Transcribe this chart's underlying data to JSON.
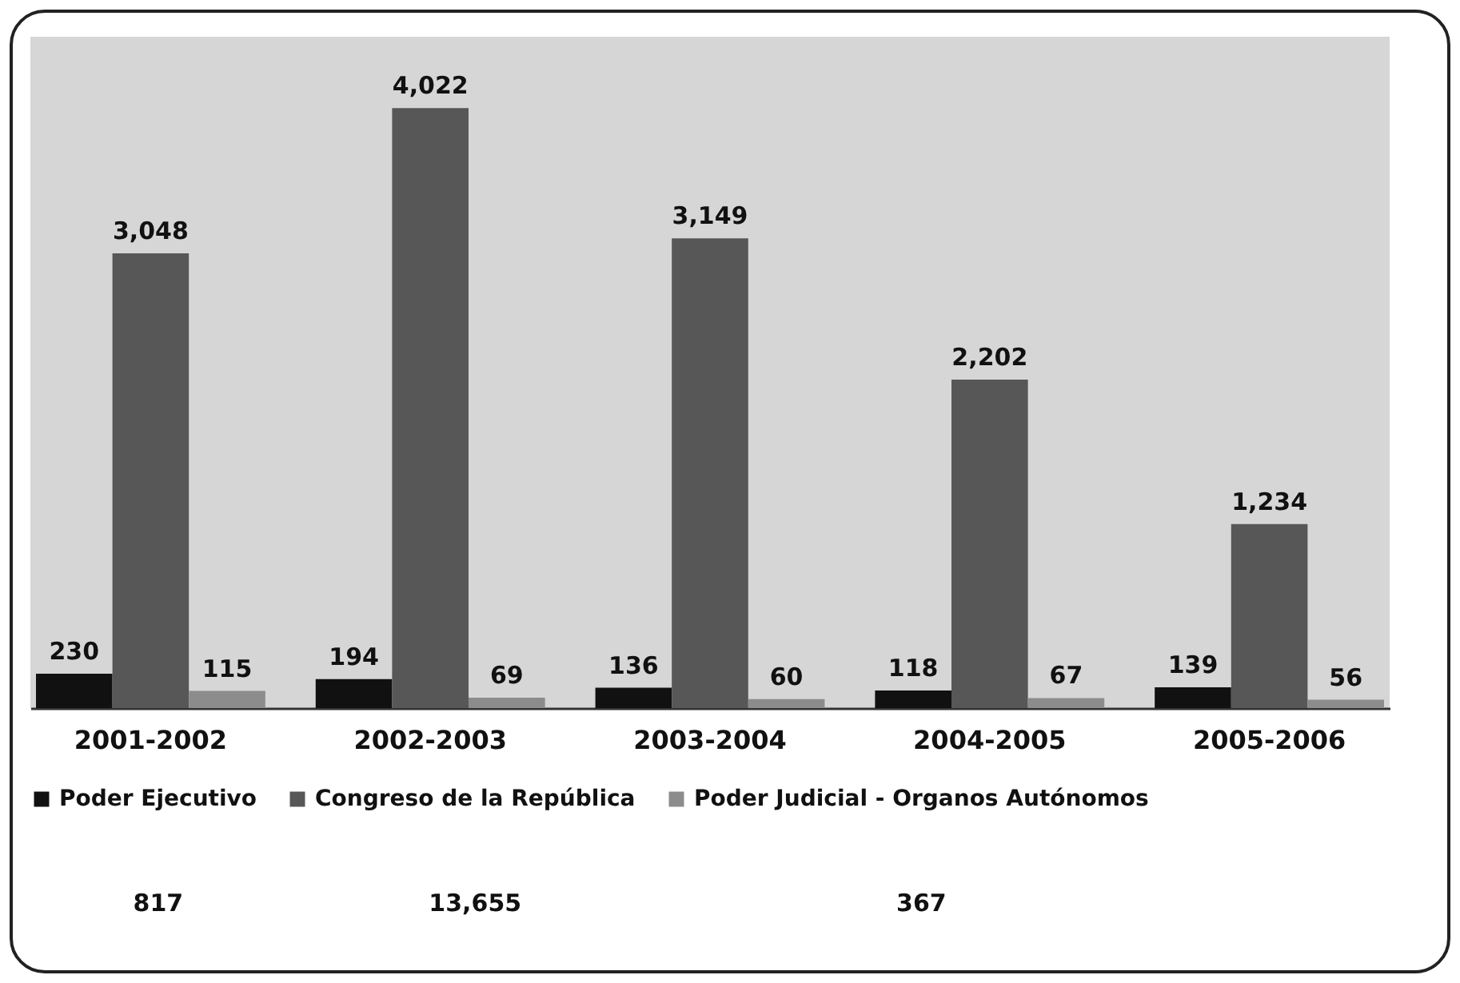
{
  "chart_data": {
    "type": "bar",
    "categories": [
      "2001-2002",
      "2002-2003",
      "2003-2004",
      "2004-2005",
      "2005-2006"
    ],
    "series": [
      {
        "name": "Poder Ejecutivo",
        "color": "#111111",
        "values": [
          230,
          194,
          136,
          118,
          139
        ],
        "value_labels": [
          "230",
          "194",
          "136",
          "118",
          "139"
        ]
      },
      {
        "name": "Congreso de la República",
        "color": "#575757",
        "values": [
          3048,
          4022,
          3149,
          2202,
          1234
        ],
        "value_labels": [
          "3,048",
          "4,022",
          "3,149",
          "2,202",
          "1,234"
        ]
      },
      {
        "name": "Poder Judicial - Organos Autónomos",
        "color": "#8c8c8c",
        "values": [
          115,
          69,
          60,
          67,
          56
        ],
        "value_labels": [
          "115",
          "69",
          "60",
          "67",
          "56"
        ]
      }
    ],
    "legend": "bottom",
    "annotations": [
      "817",
      "13,655",
      "367"
    ]
  }
}
